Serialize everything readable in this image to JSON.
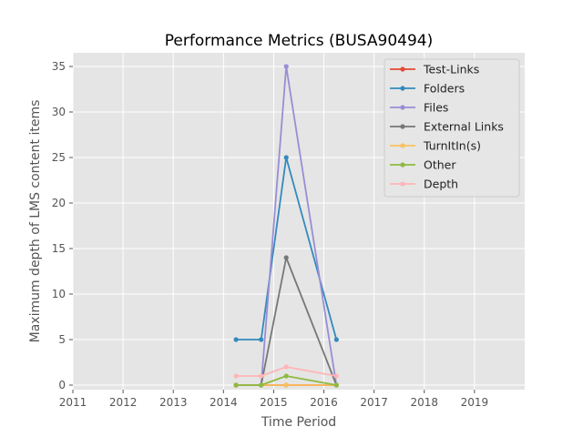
{
  "chart_data": {
    "type": "line",
    "title": "Performance Metrics (BUSA90494)",
    "xlabel": "Time Period",
    "ylabel": "Maximum depth of LMS content items",
    "xlim": [
      2011,
      2020
    ],
    "ylim": [
      -0.5,
      36.5
    ],
    "xticks": [
      "2011",
      "2012",
      "2013",
      "2014",
      "2015",
      "2016",
      "2017",
      "2018",
      "2019"
    ],
    "yticks": [
      "0",
      "5",
      "10",
      "15",
      "20",
      "25",
      "30",
      "35"
    ],
    "grid": true,
    "legend_position": "top-right",
    "x": [
      "2014-04",
      "2014-10",
      "2015-04",
      "2016-04"
    ],
    "series": [
      {
        "name": "Test-Links",
        "color": "#E24A33",
        "values": [
          0,
          0,
          0,
          0
        ]
      },
      {
        "name": "Folders",
        "color": "#348ABD",
        "values": [
          5,
          5,
          25,
          5
        ]
      },
      {
        "name": "Files",
        "color": "#988ED5",
        "values": [
          0,
          0,
          35,
          0
        ]
      },
      {
        "name": "External Links",
        "color": "#777777",
        "values": [
          0,
          0,
          14,
          0
        ]
      },
      {
        "name": "TurnItIn(s)",
        "color": "#FBC15E",
        "values": [
          0,
          0,
          0,
          0
        ]
      },
      {
        "name": "Other",
        "color": "#8EBA42",
        "values": [
          0,
          0,
          1,
          0
        ]
      },
      {
        "name": "Depth",
        "color": "#FFB5B8",
        "values": [
          1,
          1,
          2,
          1
        ]
      }
    ]
  }
}
